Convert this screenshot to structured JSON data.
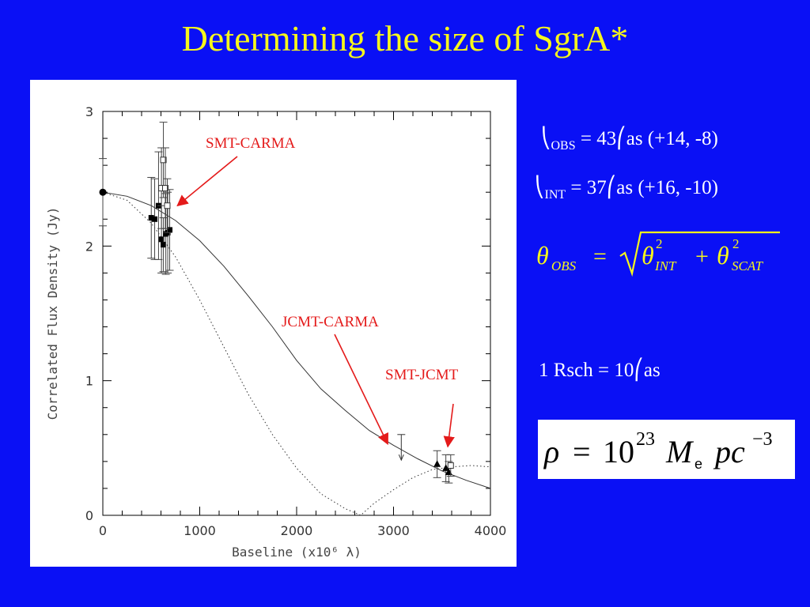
{
  "slide": {
    "title": "Determining the size of SgrA*"
  },
  "equations": {
    "obs": {
      "symbol": "⎝",
      "subscript": "OBS",
      "value_text": " = 43⎛as (+14, -8)"
    },
    "int": {
      "symbol": "⎝",
      "subscript": "INT",
      "value_text": " = 37⎛as (+16, -10)"
    },
    "rsch": {
      "text": "1 Rsch = 10⎛as"
    },
    "quadrature": {
      "lhs": "θ",
      "lhs_sub": "OBS",
      "eq": "=",
      "t1": "θ",
      "t1_sup": "2",
      "t1_sub": "INT",
      "plus": "+",
      "t2": "θ",
      "t2_sup": "2",
      "t2_sub": "SCAT"
    },
    "density": {
      "rho": "ρ",
      "eq": "=",
      "base": "10",
      "exp": "23",
      "m": "M",
      "m_sub": "e",
      "pc": "pc",
      "pc_exp": "−3"
    }
  },
  "chart_data": {
    "type": "scatter",
    "xlabel": "Baseline (x10⁶ λ)",
    "ylabel": "Correlated Flux Density (Jy)",
    "xlim": [
      0,
      4000
    ],
    "ylim": [
      0,
      3
    ],
    "x_ticks": [
      0,
      1000,
      2000,
      3000,
      4000
    ],
    "y_ticks": [
      0,
      1,
      2,
      3
    ],
    "grid": false,
    "series": [
      {
        "marker": "filled-circle",
        "points": [
          {
            "x": 0,
            "y": 2.4,
            "yerr_lo": 0.25,
            "yerr_hi": 0.25
          }
        ]
      },
      {
        "marker": "filled-square",
        "points": [
          {
            "x": 500,
            "y": 2.21,
            "yerr_lo": 0.3,
            "yerr_hi": 0.3
          },
          {
            "x": 535,
            "y": 2.2,
            "yerr_lo": 0.3,
            "yerr_hi": 0.3
          },
          {
            "x": 575,
            "y": 2.3,
            "yerr_lo": 0.4,
            "yerr_hi": 0.4
          },
          {
            "x": 605,
            "y": 2.05,
            "yerr_lo": 0.25,
            "yerr_hi": 0.25
          },
          {
            "x": 625,
            "y": 2.01,
            "yerr_lo": 0.2,
            "yerr_hi": 0.2
          },
          {
            "x": 650,
            "y": 2.09,
            "yerr_lo": 0.3,
            "yerr_hi": 0.3
          },
          {
            "x": 670,
            "y": 2.1,
            "yerr_lo": 0.3,
            "yerr_hi": 0.3
          },
          {
            "x": 690,
            "y": 2.12,
            "yerr_lo": 0.3,
            "yerr_hi": 0.3
          }
        ]
      },
      {
        "marker": "open-square",
        "points": [
          {
            "x": 605,
            "y": 2.43,
            "yerr_lo": 0.3,
            "yerr_hi": 0.3
          },
          {
            "x": 625,
            "y": 2.64,
            "yerr_lo": 0.28,
            "yerr_hi": 0.28
          },
          {
            "x": 645,
            "y": 2.43,
            "yerr_lo": 0.3,
            "yerr_hi": 0.3
          },
          {
            "x": 665,
            "y": 2.3,
            "yerr_lo": 0.2,
            "yerr_hi": 0.2
          }
        ]
      },
      {
        "marker": "filled-triangle",
        "points": [
          {
            "x": 3450,
            "y": 0.38,
            "yerr_lo": 0.1,
            "yerr_hi": 0.1
          },
          {
            "x": 3540,
            "y": 0.35,
            "yerr_lo": 0.1,
            "yerr_hi": 0.1
          },
          {
            "x": 3570,
            "y": 0.32,
            "yerr_lo": 0.08,
            "yerr_hi": 0.08
          }
        ]
      },
      {
        "marker": "open-square",
        "points": [
          {
            "x": 3590,
            "y": 0.37,
            "yerr_lo": 0.08,
            "yerr_hi": 0.08
          }
        ]
      },
      {
        "marker": "upper-limit-arrow",
        "points": [
          {
            "x": 3080,
            "y": 0.6,
            "arrow_to": 0.41
          }
        ]
      }
    ],
    "curves": [
      {
        "style": "solid",
        "points": [
          [
            0,
            2.4
          ],
          [
            250,
            2.37
          ],
          [
            500,
            2.3
          ],
          [
            750,
            2.19
          ],
          [
            1000,
            2.04
          ],
          [
            1250,
            1.85
          ],
          [
            1500,
            1.63
          ],
          [
            1750,
            1.4
          ],
          [
            2000,
            1.15
          ],
          [
            2250,
            0.94
          ],
          [
            2500,
            0.78
          ],
          [
            2750,
            0.63
          ],
          [
            3000,
            0.52
          ],
          [
            3250,
            0.42
          ],
          [
            3500,
            0.33
          ],
          [
            3750,
            0.26
          ],
          [
            4000,
            0.2
          ]
        ]
      },
      {
        "style": "dotted",
        "points": [
          [
            0,
            2.4
          ],
          [
            250,
            2.34
          ],
          [
            500,
            2.17
          ],
          [
            750,
            1.92
          ],
          [
            1000,
            1.6
          ],
          [
            1250,
            1.25
          ],
          [
            1500,
            0.9
          ],
          [
            1750,
            0.6
          ],
          [
            2000,
            0.35
          ],
          [
            2250,
            0.16
          ],
          [
            2500,
            0.05
          ],
          [
            2660,
            0.0
          ],
          [
            2800,
            0.09
          ],
          [
            3000,
            0.19
          ],
          [
            3200,
            0.28
          ],
          [
            3400,
            0.34
          ],
          [
            3600,
            0.36
          ],
          [
            3800,
            0.37
          ],
          [
            4000,
            0.36
          ]
        ]
      }
    ],
    "annotations": [
      {
        "text": "SMT-CARMA",
        "arrow_to": [
          770,
          2.3
        ]
      },
      {
        "text": "JCMT-CARMA",
        "arrow_to": [
          2940,
          0.53
        ]
      },
      {
        "text": "SMT-JCMT",
        "arrow_to": [
          3560,
          0.51
        ]
      }
    ]
  }
}
